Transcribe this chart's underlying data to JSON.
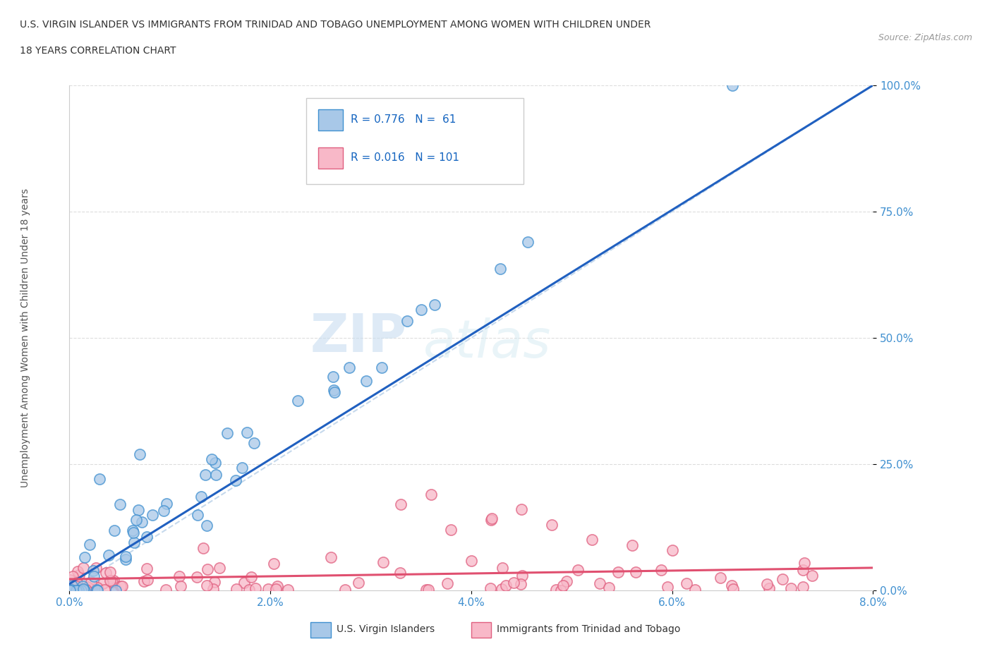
{
  "title_line1": "U.S. VIRGIN ISLANDER VS IMMIGRANTS FROM TRINIDAD AND TOBAGO UNEMPLOYMENT AMONG WOMEN WITH CHILDREN UNDER",
  "title_line2": "18 YEARS CORRELATION CHART",
  "source_text": "Source: ZipAtlas.com",
  "ylabel": "Unemployment Among Women with Children Under 18 years",
  "xlim": [
    0.0,
    0.08
  ],
  "ylim": [
    0.0,
    1.0
  ],
  "xtick_labels": [
    "0.0%",
    "2.0%",
    "4.0%",
    "6.0%",
    "8.0%"
  ],
  "xtick_vals": [
    0.0,
    0.02,
    0.04,
    0.06,
    0.08
  ],
  "ytick_labels": [
    "0.0%",
    "25.0%",
    "50.0%",
    "75.0%",
    "100.0%"
  ],
  "ytick_vals": [
    0.0,
    0.25,
    0.5,
    0.75,
    1.0
  ],
  "color_blue_fill": "#a8c8e8",
  "color_blue_edge": "#4090d0",
  "color_pink_fill": "#f8b8c8",
  "color_pink_edge": "#e06080",
  "color_blue_line": "#2060c0",
  "color_pink_line": "#e05070",
  "color_diag_line": "#b8d0e8",
  "legend_R1": "R = 0.776",
  "legend_N1": "N =  61",
  "legend_R2": "R = 0.016",
  "legend_N2": "N = 101",
  "watermark_ZIP": "ZIP",
  "watermark_atlas": "atlas",
  "background_color": "#ffffff",
  "title_color": "#333333",
  "axis_tick_color": "#4090d0",
  "ylabel_color": "#555555"
}
